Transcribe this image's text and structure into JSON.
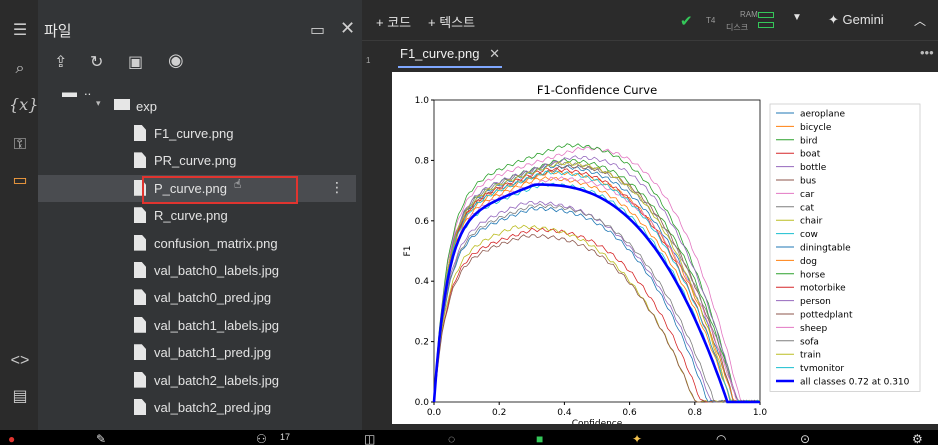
{
  "files_panel": {
    "title": "파일",
    "parent_label": "..",
    "folder": "exp",
    "files": [
      "F1_curve.png",
      "PR_curve.png",
      "P_curve.png",
      "R_curve.png",
      "confusion_matrix.png",
      "val_batch0_labels.jpg",
      "val_batch0_pred.jpg",
      "val_batch1_labels.jpg",
      "val_batch1_pred.jpg",
      "val_batch2_labels.jpg",
      "val_batch2_pred.jpg"
    ],
    "selected_index": 2
  },
  "toolbar": {
    "add_code": "+ 코드",
    "add_text": "+ 텍스트",
    "runtime": "T4",
    "ram_label": "RAM",
    "disk_label": "디스크",
    "gemini": "Gemini"
  },
  "gutter": {
    "line": "1"
  },
  "viewer": {
    "tab_label": "F1_curve.png"
  },
  "taskbar": {
    "badge_count": "17"
  },
  "chart_data": {
    "type": "line",
    "title": "F1-Confidence Curve",
    "xlabel": "Confidence",
    "ylabel": "F1",
    "xlim": [
      0,
      1
    ],
    "ylim": [
      0,
      1
    ],
    "xticks": [
      "0.0",
      "0.2",
      "0.4",
      "0.6",
      "0.8",
      "1.0"
    ],
    "yticks": [
      "0.0",
      "0.2",
      "0.4",
      "0.6",
      "0.8",
      "1.0"
    ],
    "legend_position": "right",
    "series": [
      {
        "name": "aeroplane",
        "color": "#1f77b4",
        "peak": 0.78,
        "peak_x": 0.35,
        "end": 0.92
      },
      {
        "name": "bicycle",
        "color": "#ff7f0e",
        "peak": 0.74,
        "peak_x": 0.32,
        "end": 0.91
      },
      {
        "name": "bird",
        "color": "#2ca02c",
        "peak": 0.8,
        "peak_x": 0.38,
        "end": 0.93
      },
      {
        "name": "boat",
        "color": "#d62728",
        "peak": 0.57,
        "peak_x": 0.3,
        "end": 0.82
      },
      {
        "name": "bottle",
        "color": "#9467bd",
        "peak": 0.66,
        "peak_x": 0.28,
        "end": 0.85
      },
      {
        "name": "bus",
        "color": "#8c564b",
        "peak": 0.78,
        "peak_x": 0.4,
        "end": 0.92
      },
      {
        "name": "car",
        "color": "#e377c2",
        "peak": 0.84,
        "peak_x": 0.45,
        "end": 0.94
      },
      {
        "name": "cat",
        "color": "#7f7f7f",
        "peak": 0.79,
        "peak_x": 0.36,
        "end": 0.93
      },
      {
        "name": "chair",
        "color": "#bcbd22",
        "peak": 0.58,
        "peak_x": 0.25,
        "end": 0.8
      },
      {
        "name": "cow",
        "color": "#17becf",
        "peak": 0.72,
        "peak_x": 0.33,
        "end": 0.9
      },
      {
        "name": "diningtable",
        "color": "#1f77b4",
        "peak": 0.64,
        "peak_x": 0.3,
        "end": 0.84
      },
      {
        "name": "dog",
        "color": "#ff7f0e",
        "peak": 0.76,
        "peak_x": 0.35,
        "end": 0.92
      },
      {
        "name": "horse",
        "color": "#2ca02c",
        "peak": 0.85,
        "peak_x": 0.4,
        "end": 0.93
      },
      {
        "name": "motorbike",
        "color": "#d62728",
        "peak": 0.77,
        "peak_x": 0.34,
        "end": 0.91
      },
      {
        "name": "person",
        "color": "#9467bd",
        "peak": 0.81,
        "peak_x": 0.42,
        "end": 0.93
      },
      {
        "name": "pottedplant",
        "color": "#8c564b",
        "peak": 0.55,
        "peak_x": 0.28,
        "end": 0.8
      },
      {
        "name": "sheep",
        "color": "#e377c2",
        "peak": 0.74,
        "peak_x": 0.36,
        "end": 0.93
      },
      {
        "name": "sofa",
        "color": "#7f7f7f",
        "peak": 0.65,
        "peak_x": 0.3,
        "end": 0.86
      },
      {
        "name": "train",
        "color": "#bcbd22",
        "peak": 0.79,
        "peak_x": 0.38,
        "end": 0.91
      },
      {
        "name": "tvmonitor",
        "color": "#17becf",
        "peak": 0.76,
        "peak_x": 0.34,
        "end": 0.91
      },
      {
        "name": "all classes 0.72 at 0.310",
        "color": "#0000ff",
        "peak": 0.72,
        "peak_x": 0.31,
        "end": 0.9,
        "bold": true
      }
    ]
  }
}
